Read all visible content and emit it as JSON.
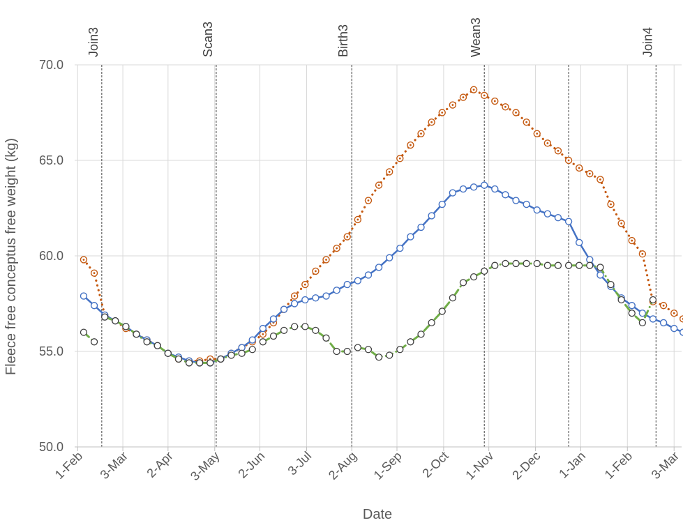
{
  "chart_data": {
    "type": "line",
    "xlabel": "Date",
    "ylabel": "Fleece free conceptus free weight (kg)",
    "ylim": [
      50,
      70
    ],
    "yticks": [
      "50.0",
      "55.0",
      "60.0",
      "65.0",
      "70.0"
    ],
    "xlim": [
      "2019-01-30",
      "2020-03-08"
    ],
    "xticks": [
      {
        "date": "2019-02-01",
        "label": "1-Feb"
      },
      {
        "date": "2019-03-03",
        "label": "3-Mar"
      },
      {
        "date": "2019-04-02",
        "label": "2-Apr"
      },
      {
        "date": "2019-05-03",
        "label": "3-May"
      },
      {
        "date": "2019-06-02",
        "label": "2-Jun"
      },
      {
        "date": "2019-07-03",
        "label": "3-Jul"
      },
      {
        "date": "2019-08-02",
        "label": "2-Aug"
      },
      {
        "date": "2019-09-01",
        "label": "1-Sep"
      },
      {
        "date": "2019-10-02",
        "label": "2-Oct"
      },
      {
        "date": "2019-11-01",
        "label": "1-Nov"
      },
      {
        "date": "2019-12-02",
        "label": "2-Dec"
      },
      {
        "date": "2020-01-01",
        "label": "1-Jan"
      },
      {
        "date": "2020-02-01",
        "label": "1-Feb"
      },
      {
        "date": "2020-03-03",
        "label": "3-Mar"
      }
    ],
    "events": [
      {
        "date": "2019-02-17",
        "label": "Join3"
      },
      {
        "date": "2019-05-04",
        "label": "Scan3"
      },
      {
        "date": "2019-08-02",
        "label": "Birth3"
      },
      {
        "date": "2019-10-29",
        "label": "Wean3"
      },
      {
        "date": "2019-12-24",
        "label": ""
      },
      {
        "date": "2020-02-20",
        "label": "Join4"
      }
    ],
    "grid": true,
    "series": [
      {
        "color": "#c55a11",
        "line_style": "dotted",
        "marker": "open-circle-dot",
        "segments": [
          {
            "x": [
              "2019-02-05",
              "2019-02-12",
              "2019-02-19",
              "2019-02-26",
              "2019-03-05",
              "2019-03-12",
              "2019-03-19",
              "2019-03-26",
              "2019-04-02",
              "2019-04-09",
              "2019-04-16",
              "2019-04-23",
              "2019-04-30",
              "2019-05-07",
              "2019-05-14",
              "2019-05-21",
              "2019-05-28",
              "2019-06-04",
              "2019-06-11",
              "2019-06-18",
              "2019-06-25",
              "2019-07-02",
              "2019-07-09",
              "2019-07-16",
              "2019-07-23",
              "2019-07-30",
              "2019-08-06",
              "2019-08-13",
              "2019-08-20",
              "2019-08-27",
              "2019-09-03",
              "2019-09-10",
              "2019-09-17",
              "2019-09-24",
              "2019-10-01",
              "2019-10-08",
              "2019-10-15",
              "2019-10-22",
              "2019-10-29",
              "2019-11-05",
              "2019-11-12",
              "2019-11-19",
              "2019-11-26",
              "2019-12-03",
              "2019-12-10",
              "2019-12-17",
              "2019-12-24",
              "2019-12-31",
              "2020-01-07",
              "2020-01-14",
              "2020-01-21",
              "2020-01-28",
              "2020-02-04",
              "2020-02-11",
              "2020-02-18",
              "2020-02-25",
              "2020-03-03",
              "2020-03-09"
            ],
            "y": [
              59.8,
              59.1,
              56.9,
              56.6,
              56.2,
              55.9,
              55.6,
              55.3,
              54.9,
              54.6,
              54.5,
              54.5,
              54.6,
              54.6,
              54.9,
              55.2,
              55.5,
              55.9,
              56.5,
              57.2,
              57.9,
              58.5,
              59.2,
              59.8,
              60.4,
              61.0,
              61.9,
              62.9,
              63.7,
              64.4,
              65.1,
              65.8,
              66.4,
              67.0,
              67.5,
              67.9,
              68.3,
              68.7,
              68.4,
              68.1,
              67.8,
              67.5,
              67.0,
              66.4,
              65.9,
              65.5,
              65.0,
              64.6,
              64.3,
              64.0,
              62.7,
              61.7,
              60.8,
              60.1,
              57.6,
              57.4,
              57.0,
              56.7
            ]
          }
        ]
      },
      {
        "color": "#4472c4",
        "line_style": "solid",
        "marker": "open-circle",
        "segments": [
          {
            "x": [
              "2019-02-05",
              "2019-02-12",
              "2019-02-19",
              "2019-02-26",
              "2019-03-05",
              "2019-03-12",
              "2019-03-19",
              "2019-03-26",
              "2019-04-02",
              "2019-04-09",
              "2019-04-16",
              "2019-04-23",
              "2019-04-30",
              "2019-05-07",
              "2019-05-14",
              "2019-05-21",
              "2019-05-28",
              "2019-06-04",
              "2019-06-11",
              "2019-06-18",
              "2019-06-25",
              "2019-07-02",
              "2019-07-09",
              "2019-07-16",
              "2019-07-23",
              "2019-07-30",
              "2019-08-06",
              "2019-08-13",
              "2019-08-20",
              "2019-08-27",
              "2019-09-03",
              "2019-09-10",
              "2019-09-17",
              "2019-09-24",
              "2019-10-01",
              "2019-10-08",
              "2019-10-15",
              "2019-10-22",
              "2019-10-29",
              "2019-11-05",
              "2019-11-12",
              "2019-11-19",
              "2019-11-26",
              "2019-12-03",
              "2019-12-10",
              "2019-12-17",
              "2019-12-24",
              "2019-12-31",
              "2020-01-07",
              "2020-01-14",
              "2020-01-21",
              "2020-01-28",
              "2020-02-04",
              "2020-02-11",
              "2020-02-18",
              "2020-02-25",
              "2020-03-03",
              "2020-03-09"
            ],
            "y": [
              57.9,
              57.4,
              56.9,
              56.6,
              56.3,
              55.9,
              55.6,
              55.3,
              54.9,
              54.7,
              54.5,
              54.4,
              54.4,
              54.6,
              54.9,
              55.2,
              55.6,
              56.2,
              56.7,
              57.2,
              57.5,
              57.7,
              57.8,
              57.9,
              58.2,
              58.5,
              58.7,
              59.0,
              59.4,
              59.9,
              60.4,
              61.0,
              61.5,
              62.1,
              62.7,
              63.3,
              63.5,
              63.6,
              63.7,
              63.5,
              63.2,
              62.9,
              62.7,
              62.4,
              62.2,
              62.0,
              61.8,
              60.7,
              59.8,
              59.0,
              58.4,
              57.8,
              57.4,
              57.0,
              56.7,
              56.5,
              56.2,
              56.0
            ]
          }
        ]
      },
      {
        "color": "#70ad47",
        "line_style": "dash-dot",
        "marker": "open-circle-dark",
        "segments": [
          {
            "x": [
              "2019-02-05",
              "2019-02-12"
            ],
            "y": [
              56.0,
              55.5
            ]
          },
          {
            "x": [
              "2019-02-19",
              "2019-02-26",
              "2019-03-05",
              "2019-03-12",
              "2019-03-19",
              "2019-03-26",
              "2019-04-02",
              "2019-04-09",
              "2019-04-16",
              "2019-04-23",
              "2019-04-30",
              "2019-05-07",
              "2019-05-14",
              "2019-05-21",
              "2019-05-28"
            ],
            "y": [
              56.8,
              56.6,
              56.3,
              55.9,
              55.5,
              55.3,
              54.9,
              54.6,
              54.4,
              54.4,
              54.4,
              54.6,
              54.8,
              54.9,
              55.1
            ]
          },
          {
            "x": [
              "2019-06-04",
              "2019-06-11",
              "2019-06-18",
              "2019-06-25",
              "2019-07-02",
              "2019-07-09",
              "2019-07-16",
              "2019-07-23",
              "2019-07-30"
            ],
            "y": [
              55.5,
              55.8,
              56.1,
              56.3,
              56.3,
              56.1,
              55.7,
              55.0,
              55.0
            ]
          },
          {
            "x": [
              "2019-08-06",
              "2019-08-13",
              "2019-08-20",
              "2019-08-27",
              "2019-09-03",
              "2019-09-10",
              "2019-09-17",
              "2019-09-24",
              "2019-10-01",
              "2019-10-08",
              "2019-10-15",
              "2019-10-22",
              "2019-10-29",
              "2019-11-05",
              "2019-11-12",
              "2019-11-19",
              "2019-11-26",
              "2019-12-03",
              "2019-12-10",
              "2019-12-17"
            ],
            "y": [
              55.2,
              55.1,
              54.7,
              54.8,
              55.1,
              55.5,
              55.9,
              56.5,
              57.1,
              57.8,
              58.6,
              58.9,
              59.2,
              59.5,
              59.6,
              59.6,
              59.6,
              59.6,
              59.5,
              59.5
            ]
          },
          {
            "x": [
              "2019-12-24",
              "2019-12-31",
              "2020-01-07",
              "2020-01-14",
              "2020-01-21",
              "2020-01-28",
              "2020-02-04",
              "2020-02-11",
              "2020-02-18"
            ],
            "y": [
              59.5,
              59.5,
              59.5,
              59.4,
              58.5,
              57.7,
              57.0,
              56.5,
              57.7
            ]
          }
        ]
      }
    ]
  }
}
